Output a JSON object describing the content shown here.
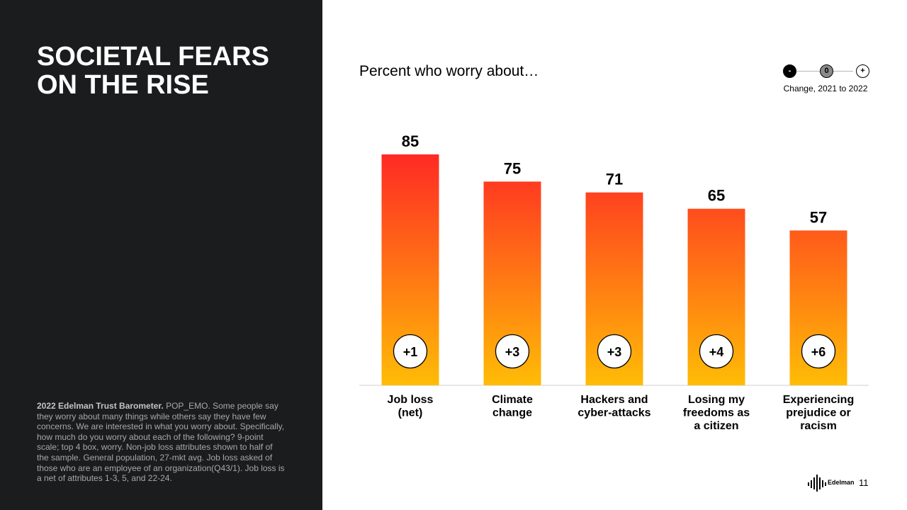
{
  "slide": {
    "title_line1": "SOCIETAL FEARS",
    "title_line2": "ON THE RISE",
    "subtitle": "Percent who worry about…",
    "source_bold": "2022 Edelman Trust Barometer.",
    "source_text": " POP_EMO. Some people say they worry about many things while others say they have few concerns. We are interested in what you worry about. Specifically, how much do you worry about each of the following? 9-point scale; top 4 box, worry. Non-job loss attributes shown to half of the sample. General population, 27-mkt avg. Job loss asked of those who are an employee of an organization(Q43/1). Job loss is a net of attributes 1-3, 5, and 22-24.",
    "brand": "Edelman",
    "page_number": "11"
  },
  "legend": {
    "negative": "-",
    "zero": "0",
    "positive": "+",
    "label": "Change, 2021 to 2022"
  },
  "colors": {
    "left_panel": "#1b1c1e",
    "bar_top": "#ff2a24",
    "bar_bottom": "#ffbc06"
  },
  "chart_data": {
    "type": "bar",
    "title": "Percent who worry about…",
    "categories": [
      [
        "Job loss",
        "(net)"
      ],
      [
        "Climate",
        "change"
      ],
      [
        "Hackers and",
        "cyber-attacks"
      ],
      [
        "Losing my",
        "freedoms as",
        "a citizen"
      ],
      [
        "Experiencing",
        "prejudice or",
        "racism"
      ]
    ],
    "values": [
      85,
      75,
      71,
      65,
      57
    ],
    "changes": [
      "+1",
      "+3",
      "+3",
      "+4",
      "+6"
    ],
    "ylim": [
      0,
      85
    ],
    "grid": false,
    "legend_position": "top-right"
  }
}
